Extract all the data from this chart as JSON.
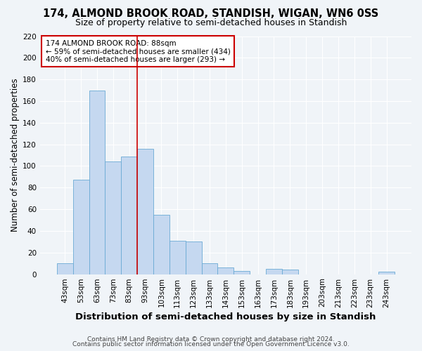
{
  "title": "174, ALMOND BROOK ROAD, STANDISH, WIGAN, WN6 0SS",
  "subtitle": "Size of property relative to semi-detached houses in Standish",
  "xlabel": "Distribution of semi-detached houses by size in Standish",
  "ylabel": "Number of semi-detached properties",
  "footer1": "Contains HM Land Registry data © Crown copyright and database right 2024.",
  "footer2": "Contains public sector information licensed under the Open Government Licence v3.0.",
  "categories": [
    "43sqm",
    "53sqm",
    "63sqm",
    "73sqm",
    "83sqm",
    "93sqm",
    "103sqm",
    "113sqm",
    "123sqm",
    "133sqm",
    "143sqm",
    "153sqm",
    "163sqm",
    "173sqm",
    "183sqm",
    "193sqm",
    "203sqm",
    "213sqm",
    "223sqm",
    "233sqm",
    "243sqm"
  ],
  "values": [
    10,
    87,
    170,
    104,
    109,
    116,
    55,
    31,
    30,
    10,
    6,
    3,
    0,
    5,
    4,
    0,
    0,
    0,
    0,
    0,
    2
  ],
  "bar_color": "#c5d8f0",
  "bar_edgecolor": "#6aaad4",
  "vline_color": "#cc0000",
  "annotation_text": "174 ALMOND BROOK ROAD: 88sqm\n← 59% of semi-detached houses are smaller (434)\n40% of semi-detached houses are larger (293) →",
  "annotation_box_color": "white",
  "annotation_box_edgecolor": "#cc0000",
  "ylim": [
    0,
    220
  ],
  "yticks": [
    0,
    20,
    40,
    60,
    80,
    100,
    120,
    140,
    160,
    180,
    200,
    220
  ],
  "bg_color": "#f0f4f8",
  "grid_color": "white",
  "title_fontsize": 10.5,
  "subtitle_fontsize": 9,
  "xlabel_fontsize": 9.5,
  "ylabel_fontsize": 8.5,
  "tick_fontsize": 7.5,
  "annotation_fontsize": 7.5,
  "footer_fontsize": 6.5
}
